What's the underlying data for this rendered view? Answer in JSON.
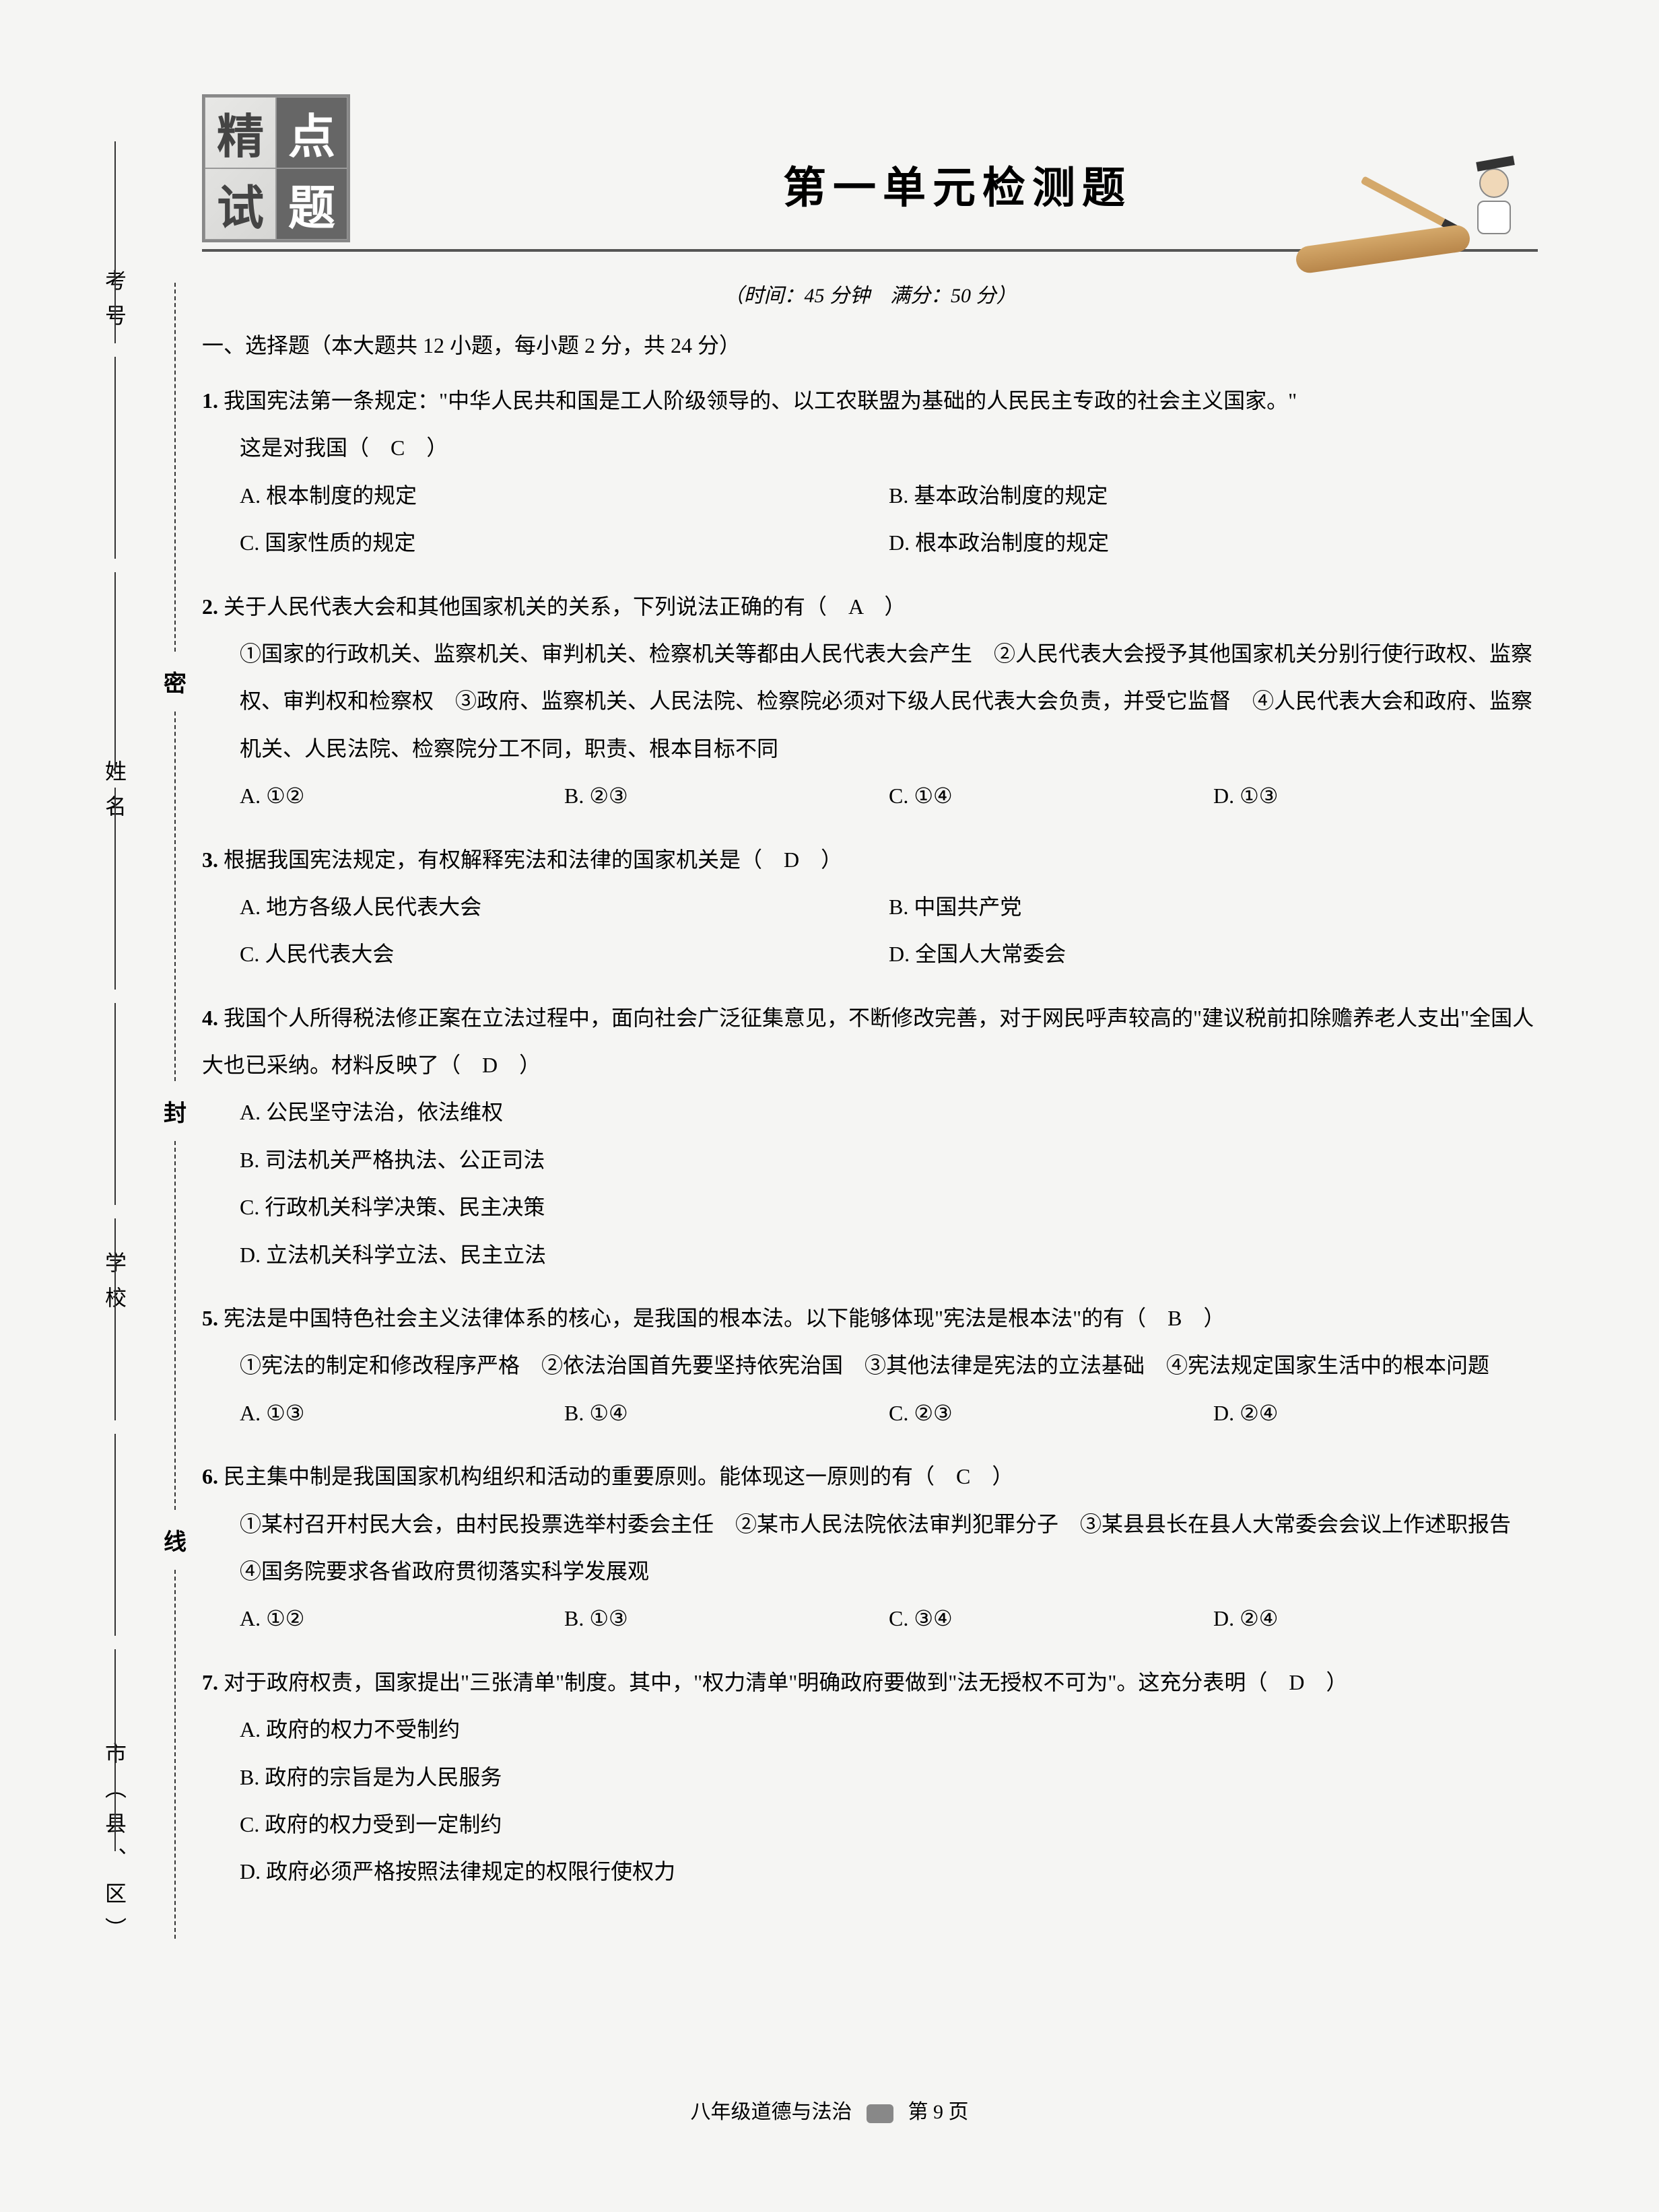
{
  "logo": {
    "c1": "精",
    "c2": "点",
    "c3": "试",
    "c4": "题"
  },
  "title": "第一单元检测题",
  "meta": "（时间：45 分钟　满分：50 分）",
  "section1": "一、选择题（本大题共 12 小题，每小题 2 分，共 24 分）",
  "side": {
    "label1": "考号",
    "label2": "姓名",
    "label3": "学校",
    "label4": "市（县、区）",
    "seal1": "密",
    "seal2": "封",
    "seal3": "线"
  },
  "questions": [
    {
      "num": "1.",
      "text": "我国宪法第一条规定：\"中华人民共和国是工人阶级领导的、以工农联盟为基础的人民民主专政的社会主义国家。\"",
      "text2": "这是对我国（　C　）",
      "options": [
        {
          "label": "A. 根本制度的规定",
          "w": "opt-2"
        },
        {
          "label": "B. 基本政治制度的规定",
          "w": "opt-2"
        },
        {
          "label": "C. 国家性质的规定",
          "w": "opt-2"
        },
        {
          "label": "D. 根本政治制度的规定",
          "w": "opt-2"
        }
      ]
    },
    {
      "num": "2.",
      "text": "关于人民代表大会和其他国家机关的关系，下列说法正确的有（　A　）",
      "sub": "①国家的行政机关、监察机关、审判机关、检察机关等都由人民代表大会产生　②人民代表大会授予其他国家机关分别行使行政权、监察权、审判权和检察权　③政府、监察机关、人民法院、检察院必须对下级人民代表大会负责，并受它监督　④人民代表大会和政府、监察机关、人民法院、检察院分工不同，职责、根本目标不同",
      "options": [
        {
          "label": "A. ①②",
          "w": "opt-4"
        },
        {
          "label": "B. ②③",
          "w": "opt-4"
        },
        {
          "label": "C. ①④",
          "w": "opt-4"
        },
        {
          "label": "D. ①③",
          "w": "opt-4"
        }
      ]
    },
    {
      "num": "3.",
      "text": "根据我国宪法规定，有权解释宪法和法律的国家机关是（　D　）",
      "options": [
        {
          "label": "A. 地方各级人民代表大会",
          "w": "opt-2"
        },
        {
          "label": "B. 中国共产党",
          "w": "opt-2"
        },
        {
          "label": "C. 人民代表大会",
          "w": "opt-2"
        },
        {
          "label": "D. 全国人大常委会",
          "w": "opt-2"
        }
      ]
    },
    {
      "num": "4.",
      "text": "我国个人所得税法修正案在立法过程中，面向社会广泛征集意见，不断修改完善，对于网民呼声较高的\"建议税前扣除赡养老人支出\"全国人大也已采纳。材料反映了（　D　）",
      "options": [
        {
          "label": "A. 公民坚守法治，依法维权",
          "w": "opt-full"
        },
        {
          "label": "B. 司法机关严格执法、公正司法",
          "w": "opt-full"
        },
        {
          "label": "C. 行政机关科学决策、民主决策",
          "w": "opt-full"
        },
        {
          "label": "D. 立法机关科学立法、民主立法",
          "w": "opt-full"
        }
      ]
    },
    {
      "num": "5.",
      "text": "宪法是中国特色社会主义法律体系的核心，是我国的根本法。以下能够体现\"宪法是根本法\"的有（　B　）",
      "sub": "①宪法的制定和修改程序严格　②依法治国首先要坚持依宪治国　③其他法律是宪法的立法基础　④宪法规定国家生活中的根本问题",
      "options": [
        {
          "label": "A. ①③",
          "w": "opt-4"
        },
        {
          "label": "B. ①④",
          "w": "opt-4"
        },
        {
          "label": "C. ②③",
          "w": "opt-4"
        },
        {
          "label": "D. ②④",
          "w": "opt-4"
        }
      ]
    },
    {
      "num": "6.",
      "text": "民主集中制是我国国家机构组织和活动的重要原则。能体现这一原则的有（　C　）",
      "sub": "①某村召开村民大会，由村民投票选举村委会主任　②某市人民法院依法审判犯罪分子　③某县县长在县人大常委会会议上作述职报告　④国务院要求各省政府贯彻落实科学发展观",
      "options": [
        {
          "label": "A. ①②",
          "w": "opt-4"
        },
        {
          "label": "B. ①③",
          "w": "opt-4"
        },
        {
          "label": "C. ③④",
          "w": "opt-4"
        },
        {
          "label": "D. ②④",
          "w": "opt-4"
        }
      ]
    },
    {
      "num": "7.",
      "text": "对于政府权责，国家提出\"三张清单\"制度。其中，\"权力清单\"明确政府要做到\"法无授权不可为\"。这充分表明（　D　）",
      "options": [
        {
          "label": "A. 政府的权力不受制约",
          "w": "opt-full"
        },
        {
          "label": "B. 政府的宗旨是为人民服务",
          "w": "opt-full"
        },
        {
          "label": "C. 政府的权力受到一定制约",
          "w": "opt-full"
        },
        {
          "label": "D. 政府必须严格按照法律规定的权限行使权力",
          "w": "opt-full"
        }
      ]
    }
  ],
  "footer": {
    "left": "八年级道德与法治",
    "right": "第 9 页"
  },
  "colors": {
    "text": "#222222",
    "bg": "#f5f5f3",
    "accent": "#666666",
    "scroll": "#d4a86a"
  }
}
